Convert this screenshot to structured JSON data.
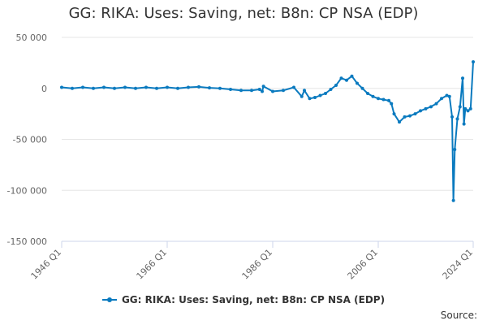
{
  "header": {
    "title": "GG: RIKA: Uses: Saving, net: B8n: CP NSA (EDP)"
  },
  "footer": {
    "source": "Source:"
  },
  "chart_data": {
    "type": "line",
    "title": "GG: RIKA: Uses: Saving, net: B8n: CP NSA (EDP)",
    "xlabel": "",
    "ylabel": "",
    "ylim": [
      -150000,
      50000
    ],
    "y_ticks": [
      50000,
      0,
      -50000,
      -100000,
      -150000
    ],
    "y_tick_labels": [
      "50 000",
      "0",
      "-50 000",
      "-100 000",
      "-150 000"
    ],
    "x_ticks": [
      1946,
      1966,
      1986,
      2006,
      2024
    ],
    "x_tick_labels": [
      "1946 Q1",
      "1966 Q1",
      "1986 Q1",
      "2006 Q1",
      "2024 Q1"
    ],
    "grid": "horizontal",
    "legend": "bottom",
    "series": [
      {
        "name": "GG: RIKA: Uses: Saving, net: B8n: CP NSA (EDP)",
        "color": "#0a7abf",
        "x": [
          1946.0,
          1948.0,
          1950.0,
          1952.0,
          1954.0,
          1956.0,
          1958.0,
          1960.0,
          1962.0,
          1964.0,
          1966.0,
          1968.0,
          1970.0,
          1972.0,
          1974.0,
          1976.0,
          1978.0,
          1980.0,
          1982.0,
          1983.5,
          1984.0,
          1984.25,
          1986.0,
          1988.0,
          1990.0,
          1991.5,
          1992.0,
          1993.0,
          1994.0,
          1995.0,
          1996.0,
          1997.0,
          1998.0,
          1999.0,
          2000.0,
          2001.0,
          2002.0,
          2003.0,
          2004.0,
          2005.0,
          2006.0,
          2007.0,
          2008.0,
          2008.5,
          2009.0,
          2010.0,
          2011.0,
          2012.0,
          2013.0,
          2014.0,
          2015.0,
          2016.0,
          2017.0,
          2018.0,
          2019.0,
          2019.5,
          2020.0,
          2020.25,
          2020.5,
          2021.0,
          2021.5,
          2022.0,
          2022.25,
          2022.5,
          2023.0,
          2023.5,
          2024.0
        ],
        "values": [
          1000,
          0,
          1000,
          0,
          1000,
          0,
          1000,
          0,
          1000,
          0,
          1000,
          0,
          1000,
          1500,
          500,
          0,
          -1000,
          -2000,
          -2000,
          -1000,
          -3000,
          2000,
          -3000,
          -2000,
          1000,
          -8000,
          -2000,
          -10000,
          -9000,
          -7000,
          -5000,
          -1000,
          3000,
          10000,
          8000,
          12000,
          5000,
          0,
          -5000,
          -8000,
          -10000,
          -11000,
          -12000,
          -15000,
          -25000,
          -33000,
          -28000,
          -27000,
          -25000,
          -22000,
          -20000,
          -18000,
          -15000,
          -10000,
          -7000,
          -8000,
          -28000,
          -110000,
          -60000,
          -30000,
          -18000,
          10000,
          -35000,
          -20000,
          -22000,
          -20000,
          26000
        ]
      }
    ]
  }
}
